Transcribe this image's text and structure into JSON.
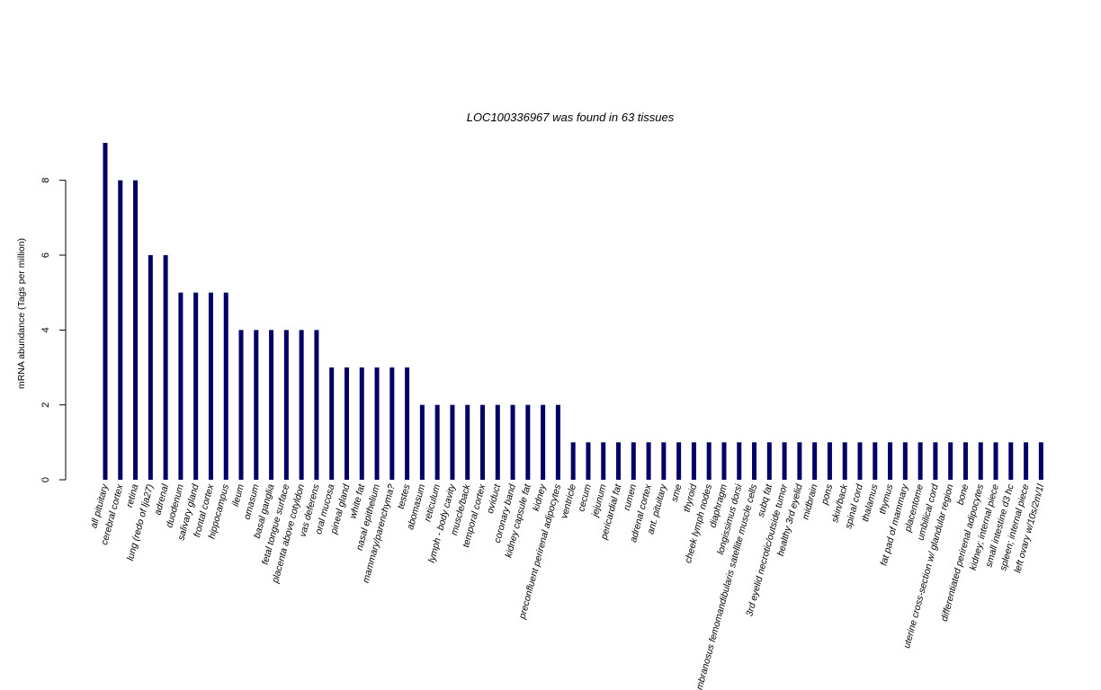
{
  "chart_data": {
    "type": "bar",
    "title": "LOC100336967  was found in  63  tissues",
    "ylabel": "mRNA abundance (Tags per million)",
    "xlabel": "",
    "ylim": [
      0,
      9
    ],
    "yticks": [
      0,
      2,
      4,
      6,
      8
    ],
    "grid": false,
    "legend": "none",
    "bar_color": "#000066",
    "categories": [
      "all pituitary",
      "cerebral cortex",
      "retina",
      "lung (redo of lja27)",
      "adrenal",
      "duodenum",
      "salivary gland",
      "frontal cortex",
      "hippocampus",
      "ileum",
      "omasum",
      "basal ganglia",
      "fetal tongue surface",
      "placenta above cotyldon",
      "vas deferens",
      "oral mucosa",
      "pineal gland",
      "white fat",
      "nasal epithelium",
      "mammary/parenchyma?",
      "testes",
      "abomasum",
      "reticulum",
      "lymph - body cavity",
      "muscle/back",
      "temporal cortex",
      "oviduct",
      "coronary band",
      "kidney capsule fat",
      "kidney",
      "preconfluent perirenal adipocytes",
      "ventricle",
      "cecum",
      "jejunum",
      "pericardial fat",
      "rumen",
      "adrenal cortex",
      "ant. pituitary",
      "sme",
      "thyroid",
      "cheek lymph nodes",
      "diaphragm",
      "longissimus dorsi",
      "semimembranosus femomandibularis satellite muscle cells",
      "subq fat",
      "3rd eyelid necrotic/outside tumor",
      "healthy 3rd eyelid",
      "midbrain",
      "pons",
      "skin/back",
      "spinal cord",
      "thalamus",
      "thymus",
      "fat pad of mammary",
      "placentome",
      "umbilical cord",
      "uterine cross-section w/ glandular region",
      "bone",
      "differentiated perirenal adipocytes",
      "kidney; internal piece",
      "small intestine d3 hc",
      "spleen; internal piece",
      "left ovary w/10s/2m/1l"
    ],
    "values": [
      9,
      8,
      8,
      6,
      6,
      5,
      5,
      5,
      5,
      4,
      4,
      4,
      4,
      4,
      4,
      3,
      3,
      3,
      3,
      3,
      3,
      2,
      2,
      2,
      2,
      2,
      2,
      2,
      2,
      2,
      2,
      1,
      1,
      1,
      1,
      1,
      1,
      1,
      1,
      1,
      1,
      1,
      1,
      1,
      1,
      1,
      1,
      1,
      1,
      1,
      1,
      1,
      1,
      1,
      1,
      1,
      1,
      1,
      1,
      1,
      1,
      1,
      1
    ]
  }
}
